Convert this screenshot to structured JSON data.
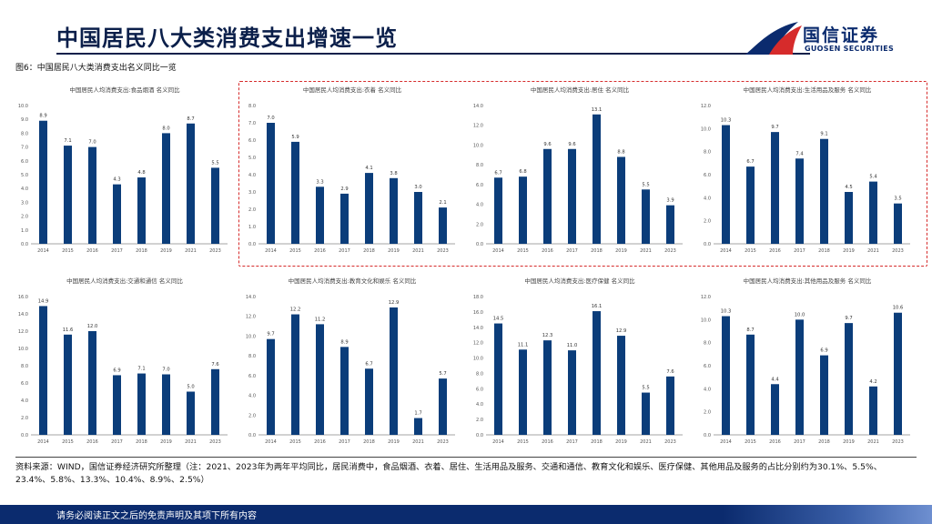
{
  "header": {
    "title": "中国居民八大类消费支出增速一览",
    "logo_name": "国信证券",
    "logo_sub": "GUOSEN SECURITIES"
  },
  "figure_label": "图6：中国居民八大类消费支出名义同比一览",
  "source_note": "资料来源：WIND，国信证券经济研究所整理（注：2021、2023年为两年平均同比，居民消费中，食品烟酒、衣着、居住、生活用品及服务、交通和通信、教育文化和娱乐、医疗保健、其他用品及服务的占比分别约为30.1%、5.5%、23.4%、5.8%、13.3%、10.4%、8.9%、2.5%）",
  "footer_text": "请务必阅读正文之后的免责声明及其项下所有内容",
  "colors": {
    "bar": "#0b3d7a",
    "accent": "#d62b2b",
    "brand": "#0b2b6e"
  },
  "chart_data": [
    {
      "type": "bar",
      "title": "中国居民人均消费支出:食品烟酒 名义同比",
      "categories": [
        "2014",
        "2015",
        "2016",
        "2017",
        "2018",
        "2019",
        "2021",
        "2023"
      ],
      "values": [
        8.9,
        7.1,
        7.0,
        4.3,
        4.8,
        8.0,
        8.7,
        5.5
      ],
      "ylim": [
        0,
        10
      ],
      "yticks": [
        "0.0",
        "1.0",
        "2.0",
        "3.0",
        "4.0",
        "5.0",
        "6.0",
        "7.0",
        "8.0",
        "9.0",
        "10.0"
      ]
    },
    {
      "type": "bar",
      "title": "中国居民人均消费支出:衣着 名义同比",
      "categories": [
        "2014",
        "2015",
        "2016",
        "2017",
        "2018",
        "2019",
        "2021",
        "2023"
      ],
      "values": [
        7.0,
        5.9,
        3.3,
        2.9,
        4.1,
        3.8,
        3.0,
        2.1
      ],
      "ylim": [
        0,
        8
      ],
      "yticks": [
        "0.0",
        "1.0",
        "2.0",
        "3.0",
        "4.0",
        "5.0",
        "6.0",
        "7.0",
        "8.0"
      ]
    },
    {
      "type": "bar",
      "title": "中国居民人均消费支出:居住 名义同比",
      "categories": [
        "2014",
        "2015",
        "2016",
        "2017",
        "2018",
        "2019",
        "2021",
        "2023"
      ],
      "values": [
        6.7,
        6.8,
        9.6,
        9.6,
        13.1,
        8.8,
        5.5,
        3.9
      ],
      "ylim": [
        0,
        14
      ],
      "yticks": [
        "0.0",
        "2.0",
        "4.0",
        "6.0",
        "8.0",
        "10.0",
        "12.0",
        "14.0"
      ]
    },
    {
      "type": "bar",
      "title": "中国居民人均消费支出:生活用品及服务 名义同比",
      "categories": [
        "2014",
        "2015",
        "2016",
        "2017",
        "2018",
        "2019",
        "2021",
        "2023"
      ],
      "values": [
        10.3,
        6.7,
        9.7,
        7.4,
        9.1,
        4.5,
        5.4,
        3.5
      ],
      "ylim": [
        0,
        12
      ],
      "yticks": [
        "0.0",
        "2.0",
        "4.0",
        "6.0",
        "8.0",
        "10.0",
        "12.0"
      ]
    },
    {
      "type": "bar",
      "title": "中国居民人均消费支出:交通和通信 名义同比",
      "categories": [
        "2014",
        "2015",
        "2016",
        "2017",
        "2018",
        "2019",
        "2021",
        "2023"
      ],
      "values": [
        14.9,
        11.6,
        12.0,
        6.9,
        7.1,
        7.0,
        5.0,
        7.6
      ],
      "ylim": [
        0,
        16
      ],
      "yticks": [
        "0.0",
        "2.0",
        "4.0",
        "6.0",
        "8.0",
        "10.0",
        "12.0",
        "14.0",
        "16.0"
      ]
    },
    {
      "type": "bar",
      "title": "中国居民人均消费支出:教育文化和娱乐 名义同比",
      "categories": [
        "2014",
        "2015",
        "2016",
        "2017",
        "2018",
        "2019",
        "2021",
        "2023"
      ],
      "values": [
        9.7,
        12.2,
        11.2,
        8.9,
        6.7,
        12.9,
        1.7,
        5.7
      ],
      "ylim": [
        0,
        14
      ],
      "yticks": [
        "0.0",
        "2.0",
        "4.0",
        "6.0",
        "8.0",
        "10.0",
        "12.0",
        "14.0"
      ]
    },
    {
      "type": "bar",
      "title": "中国居民人均消费支出:医疗保健 名义同比",
      "categories": [
        "2014",
        "2015",
        "2016",
        "2017",
        "2018",
        "2019",
        "2021",
        "2023"
      ],
      "values": [
        14.5,
        11.1,
        12.3,
        11.0,
        16.1,
        12.9,
        5.5,
        7.6
      ],
      "ylim": [
        0,
        18
      ],
      "yticks": [
        "0.0",
        "2.0",
        "4.0",
        "6.0",
        "8.0",
        "10.0",
        "12.0",
        "14.0",
        "16.0",
        "18.0"
      ]
    },
    {
      "type": "bar",
      "title": "中国居民人均消费支出:其他用品及服务 名义同比",
      "categories": [
        "2014",
        "2015",
        "2016",
        "2017",
        "2018",
        "2019",
        "2021",
        "2023"
      ],
      "values": [
        10.3,
        8.7,
        4.4,
        10.0,
        6.9,
        9.7,
        4.2,
        10.6
      ],
      "ylim": [
        0,
        12
      ],
      "yticks": [
        "0.0",
        "2.0",
        "4.0",
        "6.0",
        "8.0",
        "10.0",
        "12.0"
      ]
    }
  ]
}
